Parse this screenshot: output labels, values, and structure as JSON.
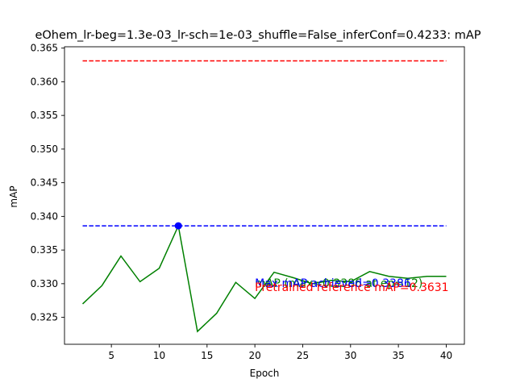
{
  "chart_data": {
    "type": "line",
    "title": "eOhem_lr-beg=1.3e-03_lr-sch=1e-03_shuffle=False_inferConf=0.4233:  mAP",
    "xlabel": "Epoch",
    "ylabel": "mAP",
    "xlim": [
      0.1,
      41.9
    ],
    "ylim": [
      0.321,
      0.3652
    ],
    "x_ticks": [
      5,
      10,
      15,
      20,
      25,
      30,
      35,
      40
    ],
    "y_ticks": [
      0.325,
      0.33,
      0.335,
      0.34,
      0.345,
      0.35,
      0.355,
      0.36,
      0.365
    ],
    "y_tick_labels": [
      "0.325",
      "0.330",
      "0.335",
      "0.340",
      "0.345",
      "0.350",
      "0.355",
      "0.360",
      "0.365"
    ],
    "grid": false,
    "series": [
      {
        "name": "mAP (max=0.3386 at ep=12)",
        "color": "#008000",
        "style": "solid",
        "x": [
          2,
          4,
          6,
          8,
          10,
          12,
          14,
          16,
          18,
          20,
          22,
          24,
          26,
          28,
          30,
          32,
          34,
          36,
          38,
          40
        ],
        "values": [
          0.327,
          0.3297,
          0.3341,
          0.3303,
          0.3323,
          0.3386,
          0.3229,
          0.3256,
          0.3302,
          0.3278,
          0.3317,
          0.3309,
          0.33,
          0.3305,
          0.3303,
          0.3318,
          0.3311,
          0.3308,
          0.3311,
          0.3311
        ]
      },
      {
        "name": "Max mAP achieved=0.3386",
        "color": "#0000ff",
        "style": "dashed",
        "x": [
          2,
          40
        ],
        "values": [
          0.3386,
          0.3386
        ]
      },
      {
        "name": "Pretrained reference mAP=0.3631",
        "color": "#ff0000",
        "style": "dashed",
        "x": [
          2,
          40
        ],
        "values": [
          0.3631,
          0.3631
        ]
      }
    ],
    "max_point": {
      "x": 12,
      "y": 0.3386,
      "color": "#0000ff"
    },
    "annotations": [
      {
        "text": "mAP (max=0.3386 at ep=12)",
        "color": "#008000",
        "x": 20,
        "y": 0.33
      },
      {
        "text": "Max mAP achieved=0.3386",
        "color": "#0000ff",
        "x": 20,
        "y": 0.33
      },
      {
        "text": "Pretrained reference mAP=0.3631",
        "color": "#ff0000",
        "x": 20,
        "y": 0.3294
      }
    ]
  }
}
